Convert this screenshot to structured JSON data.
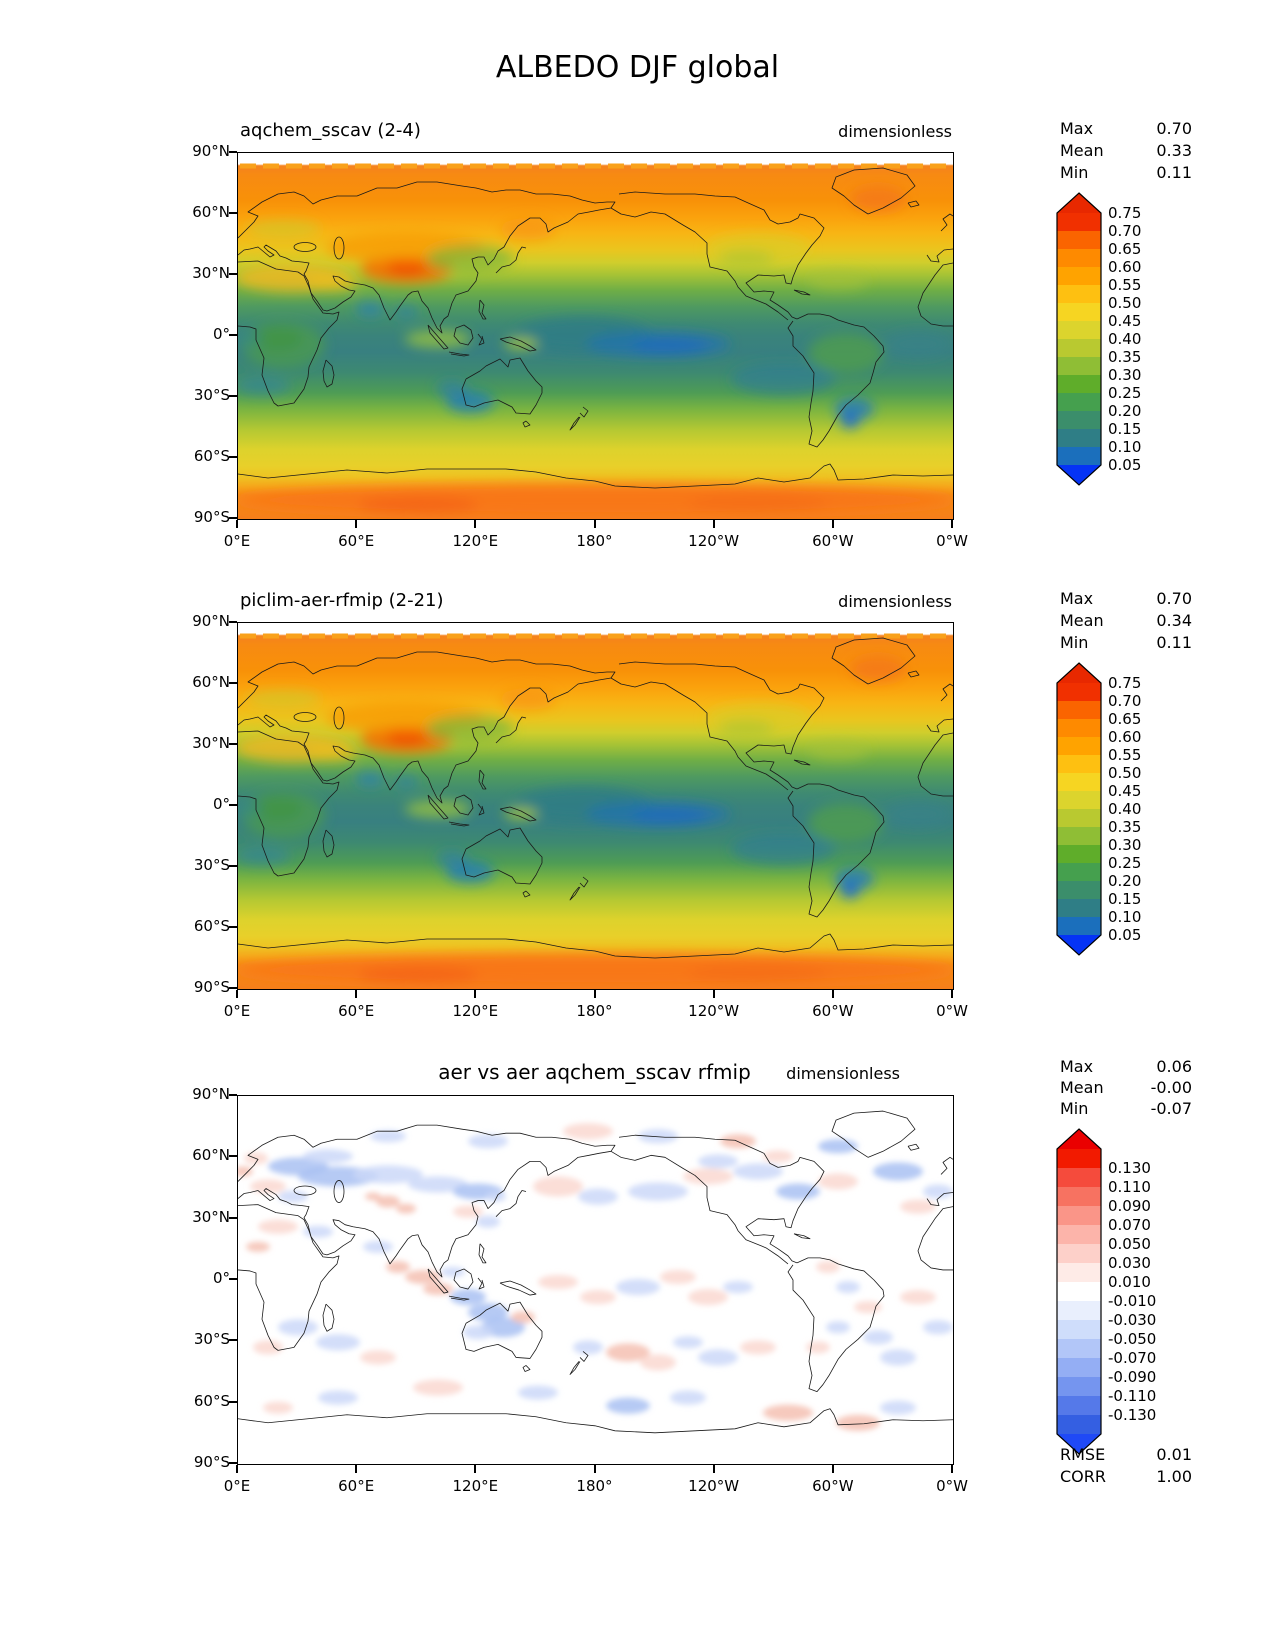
{
  "figure_title": "ALBEDO DJF global",
  "panels": [
    {
      "title": "aqchem_sscav (2-4)",
      "units": "dimensionless",
      "stats": [
        {
          "label": "Max",
          "value": "0.70"
        },
        {
          "label": "Mean",
          "value": "0.33"
        },
        {
          "label": "Min",
          "value": "0.11"
        }
      ],
      "y_tick_labels": [
        "90°N",
        "60°N",
        "30°N",
        "0°",
        "30°S",
        "60°S",
        "90°S"
      ],
      "x_tick_labels": [
        "0°E",
        "60°E",
        "120°E",
        "180°",
        "120°W",
        "60°W",
        "0°W"
      ],
      "colorbar": {
        "tick_labels": [
          "0.75",
          "0.70",
          "0.65",
          "0.60",
          "0.55",
          "0.50",
          "0.45",
          "0.40",
          "0.35",
          "0.30",
          "0.25",
          "0.20",
          "0.15",
          "0.10",
          "0.05"
        ],
        "band_colors_top_to_bottom": [
          "#F13000",
          "#FA6400",
          "#FE8A00",
          "#FFA300",
          "#FEC011",
          "#F6D522",
          "#DCD42D",
          "#B9C930",
          "#8FBE35",
          "#5FAD2A",
          "#45A04E",
          "#3B8E6B",
          "#2F7E86",
          "#1B6FBC"
        ],
        "extend_top_color": "#E82800",
        "extend_bottom_color": "#0533F5"
      },
      "map_kind": "albedo",
      "zonal_stops": [
        [
          0,
          "#FFFFFF"
        ],
        [
          0.03,
          "#FFFFFF"
        ],
        [
          0.035,
          "#F5821E"
        ],
        [
          0.06,
          "#F78A12"
        ],
        [
          0.13,
          "#F89108"
        ],
        [
          0.175,
          "#FBA10C"
        ],
        [
          0.22,
          "#F8B514"
        ],
        [
          0.265,
          "#EAC51E"
        ],
        [
          0.3,
          "#CFCE2C"
        ],
        [
          0.335,
          "#A3C236"
        ],
        [
          0.375,
          "#6FAE46"
        ],
        [
          0.42,
          "#4F9A60"
        ],
        [
          0.465,
          "#3F8A72"
        ],
        [
          0.5,
          "#3A837B"
        ],
        [
          0.545,
          "#388080"
        ],
        [
          0.6,
          "#3D8971"
        ],
        [
          0.655,
          "#4E9C55"
        ],
        [
          0.7,
          "#7AB441"
        ],
        [
          0.755,
          "#B3C833"
        ],
        [
          0.81,
          "#DDD22C"
        ],
        [
          0.855,
          "#E8D02A"
        ],
        [
          0.885,
          "#EEC322"
        ],
        [
          0.91,
          "#F5A91C"
        ],
        [
          0.935,
          "#F78C16"
        ],
        [
          1,
          "#F67F1A"
        ]
      ]
    },
    {
      "title": "piclim-aer-rfmip (2-21)",
      "units": "dimensionless",
      "stats": [
        {
          "label": "Max",
          "value": "0.70"
        },
        {
          "label": "Mean",
          "value": "0.34"
        },
        {
          "label": "Min",
          "value": "0.11"
        }
      ],
      "y_tick_labels": [
        "90°N",
        "60°N",
        "30°N",
        "0°",
        "30°S",
        "60°S",
        "90°S"
      ],
      "x_tick_labels": [
        "0°E",
        "60°E",
        "120°E",
        "180°",
        "120°W",
        "60°W",
        "0°W"
      ],
      "colorbar": {
        "tick_labels": [
          "0.75",
          "0.70",
          "0.65",
          "0.60",
          "0.55",
          "0.50",
          "0.45",
          "0.40",
          "0.35",
          "0.30",
          "0.25",
          "0.20",
          "0.15",
          "0.10",
          "0.05"
        ],
        "band_colors_top_to_bottom": [
          "#F13000",
          "#FA6400",
          "#FE8A00",
          "#FFA300",
          "#FEC011",
          "#F6D522",
          "#DCD42D",
          "#B9C930",
          "#8FBE35",
          "#5FAD2A",
          "#45A04E",
          "#3B8E6B",
          "#2F7E86",
          "#1B6FBC"
        ],
        "extend_top_color": "#E82800",
        "extend_bottom_color": "#0533F5"
      },
      "map_kind": "albedo",
      "zonal_stops": [
        [
          0,
          "#FFFFFF"
        ],
        [
          0.03,
          "#FFFFFF"
        ],
        [
          0.035,
          "#F5821E"
        ],
        [
          0.06,
          "#F78A12"
        ],
        [
          0.13,
          "#F89108"
        ],
        [
          0.175,
          "#FBA10C"
        ],
        [
          0.22,
          "#F8B514"
        ],
        [
          0.265,
          "#EAC51E"
        ],
        [
          0.3,
          "#CFCE2C"
        ],
        [
          0.335,
          "#A3C236"
        ],
        [
          0.375,
          "#6FAE46"
        ],
        [
          0.42,
          "#4F9A60"
        ],
        [
          0.465,
          "#3F8A72"
        ],
        [
          0.5,
          "#3A837B"
        ],
        [
          0.545,
          "#388080"
        ],
        [
          0.6,
          "#3D8971"
        ],
        [
          0.655,
          "#4E9C55"
        ],
        [
          0.7,
          "#7AB441"
        ],
        [
          0.755,
          "#B3C833"
        ],
        [
          0.81,
          "#DDD22C"
        ],
        [
          0.855,
          "#E8D02A"
        ],
        [
          0.885,
          "#EEC322"
        ],
        [
          0.91,
          "#F5A91C"
        ],
        [
          0.935,
          "#F78C16"
        ],
        [
          1,
          "#F67F1A"
        ]
      ]
    },
    {
      "title": "aer vs aer aqchem_sscav rfmip",
      "units": "dimensionless",
      "stats": [
        {
          "label": "Max",
          "value": "0.06"
        },
        {
          "label": "Mean",
          "value": "-0.00"
        },
        {
          "label": "Min",
          "value": "-0.07"
        }
      ],
      "extra_stats": [
        {
          "label": "RMSE",
          "value": "0.01"
        },
        {
          "label": "CORR",
          "value": "1.00"
        }
      ],
      "y_tick_labels": [
        "90°N",
        "60°N",
        "30°N",
        "0°",
        "30°S",
        "60°S",
        "90°S"
      ],
      "x_tick_labels": [
        "0°E",
        "60°E",
        "120°E",
        "180°",
        "120°W",
        "60°W",
        "0°W"
      ],
      "colorbar": {
        "tick_labels": [
          "0.130",
          "0.110",
          "0.090",
          "0.070",
          "0.050",
          "0.030",
          "0.010",
          "-0.010",
          "-0.030",
          "-0.050",
          "-0.070",
          "-0.090",
          "-0.110",
          "-0.130"
        ],
        "band_colors_top_to_bottom": [
          "#F21A00",
          "#F54B3C",
          "#F77261",
          "#FA9588",
          "#FCB4AA",
          "#FDD0C9",
          "#FEEBE7",
          "#FFFFFF",
          "#E9EFFD",
          "#CFDDFB",
          "#B2C6F8",
          "#94AEF4",
          "#7595EF",
          "#5579E9",
          "#345FE2"
        ],
        "extend_top_color": "#EA0000",
        "extend_bottom_color": "#1F49F6"
      },
      "map_kind": "diff",
      "diff_colors": {
        "blue_strong": "#A9C1F2",
        "blue_light": "#CBD8F8",
        "red_strong": "#F5BFB2",
        "red_light": "#FAD8D0"
      }
    }
  ],
  "chart_data": [
    {
      "type": "heatmap",
      "subtype": "filled_contour_global_map",
      "variable": "ALBEDO",
      "season": "DJF",
      "region": "global",
      "title": "aqchem_sscav (2-4)",
      "units": "dimensionless",
      "levels": [
        0.05,
        0.1,
        0.15,
        0.2,
        0.25,
        0.3,
        0.35,
        0.4,
        0.45,
        0.5,
        0.55,
        0.6,
        0.65,
        0.7,
        0.75
      ],
      "stats": {
        "max": 0.7,
        "mean": 0.33,
        "min": 0.11
      },
      "lon_ticks": [
        "0°E",
        "60°E",
        "120°E",
        "180°",
        "120°W",
        "60°W",
        "0°W"
      ],
      "lat_ticks": [
        "90°N",
        "60°N",
        "30°N",
        "0°",
        "30°S",
        "60°S",
        "90°S"
      ],
      "legend_position": "right",
      "colormap_extends": "both"
    },
    {
      "type": "heatmap",
      "subtype": "filled_contour_global_map",
      "variable": "ALBEDO",
      "season": "DJF",
      "region": "global",
      "title": "piclim-aer-rfmip (2-21)",
      "units": "dimensionless",
      "levels": [
        0.05,
        0.1,
        0.15,
        0.2,
        0.25,
        0.3,
        0.35,
        0.4,
        0.45,
        0.5,
        0.55,
        0.6,
        0.65,
        0.7,
        0.75
      ],
      "stats": {
        "max": 0.7,
        "mean": 0.34,
        "min": 0.11
      },
      "lon_ticks": [
        "0°E",
        "60°E",
        "120°E",
        "180°",
        "120°W",
        "60°W",
        "0°W"
      ],
      "lat_ticks": [
        "90°N",
        "60°N",
        "30°N",
        "0°",
        "30°S",
        "60°S",
        "90°S"
      ],
      "legend_position": "right",
      "colormap_extends": "both"
    },
    {
      "type": "heatmap",
      "subtype": "difference_map",
      "variable": "ALBEDO",
      "season": "DJF",
      "region": "global",
      "title": "aer vs aer aqchem_sscav rfmip",
      "units": "dimensionless",
      "levels": [
        -0.13,
        -0.11,
        -0.09,
        -0.07,
        -0.05,
        -0.03,
        -0.01,
        0.01,
        0.03,
        0.05,
        0.07,
        0.09,
        0.11,
        0.13
      ],
      "stats": {
        "max": 0.06,
        "mean": -0.0,
        "min": -0.07,
        "rmse": 0.01,
        "corr": 1.0
      },
      "lon_ticks": [
        "0°E",
        "60°E",
        "120°E",
        "180°",
        "120°W",
        "60°W",
        "0°W"
      ],
      "lat_ticks": [
        "90°N",
        "60°N",
        "30°N",
        "0°",
        "30°S",
        "60°S",
        "90°S"
      ],
      "legend_position": "right",
      "colormap_extends": "both"
    }
  ]
}
